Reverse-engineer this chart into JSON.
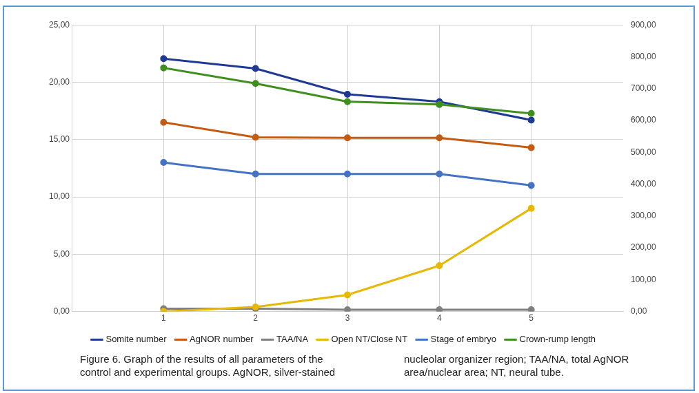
{
  "chart_data": {
    "type": "line",
    "categories": [
      null,
      "1",
      "2",
      "3",
      "4",
      "5",
      null
    ],
    "series": [
      {
        "name": "Somite number",
        "color": "#1f3a93",
        "values": [
          null,
          22.05,
          21.2,
          18.95,
          18.3,
          16.7,
          null
        ]
      },
      {
        "name": "AgNOR number",
        "color": "#c55a11",
        "values": [
          null,
          16.5,
          15.2,
          15.15,
          15.15,
          14.3,
          null
        ]
      },
      {
        "name": "TAA/NA",
        "color": "#7f7f7f",
        "values": [
          null,
          0.25,
          0.25,
          0.15,
          0.15,
          0.15,
          null
        ]
      },
      {
        "name": "Open NT/Close NT",
        "color": "#e6b800",
        "values": [
          null,
          0,
          0.4,
          1.45,
          4,
          9,
          null
        ]
      },
      {
        "name": "Stage of embryo",
        "color": "#4472c4",
        "values": [
          null,
          13,
          12,
          12,
          12,
          11,
          null
        ]
      },
      {
        "name": "Crown-rump length",
        "color": "#3f8f1f",
        "axis": "y2",
        "values": [
          null,
          765,
          716,
          659,
          650,
          622,
          null
        ]
      }
    ],
    "ylim": [
      0,
      25
    ],
    "yticks": [
      {
        "value": 0,
        "label": "0,00"
      },
      {
        "value": 5,
        "label": "5,00"
      },
      {
        "value": 10,
        "label": "10,00"
      },
      {
        "value": 15,
        "label": "15,00"
      },
      {
        "value": 20,
        "label": "20,00"
      },
      {
        "value": 25,
        "label": "25,00"
      }
    ],
    "y2lim": [
      0,
      900
    ],
    "y2ticks": [
      {
        "value": 0,
        "label": "0,00"
      },
      {
        "value": 100,
        "label": "100,00"
      },
      {
        "value": 200,
        "label": "200,00"
      },
      {
        "value": 300,
        "label": "300,00"
      },
      {
        "value": 400,
        "label": "400,00"
      },
      {
        "value": 500,
        "label": "500,00"
      },
      {
        "value": 600,
        "label": "600,00"
      },
      {
        "value": 700,
        "label": "700,00"
      },
      {
        "value": 800,
        "label": "800,00"
      },
      {
        "value": 900,
        "label": "900,00"
      }
    ],
    "grid": true,
    "legend": "bottom",
    "marker": "circle",
    "line_style": "solid",
    "annotations": [
      "Figure 6. Graph of the results of all parameters of the control and experimental groups. AgNOR, silver-stained nucleolar organizer region; TAA/NA, total AgNOR area/nuclear area; NT, neural tube."
    ]
  }
}
